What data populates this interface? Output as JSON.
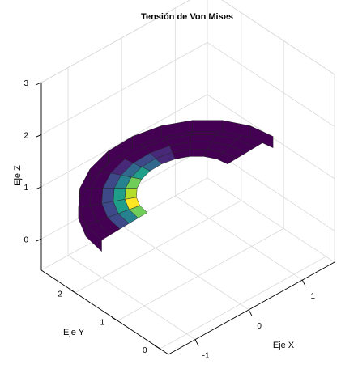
{
  "chart_data": {
    "type": "surface3d",
    "title": "Tensión de Von Mises",
    "xlabel": "Eje X",
    "ylabel": "Eje Y",
    "zlabel": "Eje Z",
    "x_ticks": [
      "-1",
      "0",
      "1"
    ],
    "y_ticks": [
      "0",
      "1",
      "2"
    ],
    "z_ticks": [
      "0",
      "1",
      "2",
      "3"
    ],
    "xlim": [
      -1.5,
      1.6
    ],
    "ylim": [
      -0.2,
      2.8
    ],
    "zlim": [
      -0.6,
      3.0
    ],
    "grid": true,
    "colormap": [
      "#440154",
      "#482878",
      "#3e4989",
      "#31688e",
      "#26828e",
      "#1f9e89",
      "#35b779",
      "#6ece58",
      "#b5de2b",
      "#fde725"
    ],
    "surface": {
      "inner_radius": 0.75,
      "outer_radius": 1.6,
      "theta_deg_range": [
        0,
        180
      ],
      "radial_cells": 5,
      "angular_cells": 11,
      "stress_pattern": "high at inner edge near 150°, decreasing outward"
    }
  }
}
